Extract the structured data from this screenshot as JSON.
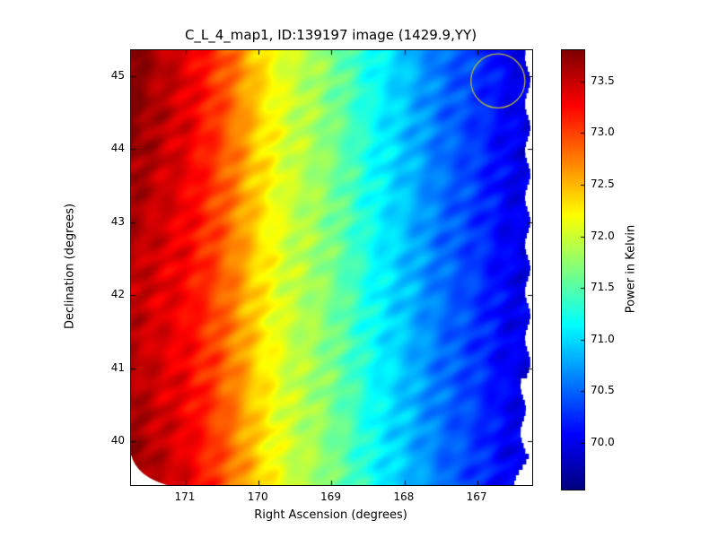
{
  "title": "C_L_4_map1, ID:139197 image (1429.9,YY)",
  "axes": {
    "xlabel": "Right Ascension (degrees)",
    "ylabel": "Declination (degrees)",
    "x_ticks": [
      "171",
      "170",
      "169",
      "168",
      "167"
    ],
    "y_ticks": [
      "45",
      "44",
      "43",
      "42",
      "41",
      "40"
    ],
    "x_range": [
      171.75,
      166.25
    ],
    "y_range": [
      39.4,
      45.35
    ]
  },
  "colorbar": {
    "label": "Power in Kelvin",
    "ticks": [
      "73.5",
      "73.0",
      "72.5",
      "72.0",
      "71.5",
      "71.0",
      "70.5",
      "70.0"
    ],
    "vmin": 69.55,
    "vmax": 73.8
  },
  "chart_data": {
    "type": "heatmap",
    "colormap": "jet",
    "title": "C_L_4_map1, ID:139197 image (1429.9,YY)",
    "xlabel": "Right Ascension (degrees)",
    "ylabel": "Declination (degrees)",
    "x_range_ra_deg": [
      171.75,
      166.25
    ],
    "y_range_dec_deg": [
      39.4,
      45.35
    ],
    "value_units": "Kelvin",
    "value_range": [
      69.55,
      73.8
    ],
    "ra_profile": {
      "ra": [
        171.75,
        171.4,
        171.0,
        170.6,
        170.3,
        170.0,
        169.6,
        169.2,
        168.8,
        168.4,
        168.0,
        167.5,
        167.0,
        166.6,
        166.25
      ],
      "value": [
        73.6,
        73.45,
        73.3,
        73.0,
        72.7,
        72.35,
        72.0,
        71.8,
        71.5,
        71.15,
        70.9,
        70.55,
        70.3,
        70.05,
        69.95
      ]
    },
    "annotation_circle": {
      "ra_deg": 166.72,
      "dec_deg": 44.93,
      "radius_deg": 0.37,
      "color": "#b4b43c"
    }
  }
}
